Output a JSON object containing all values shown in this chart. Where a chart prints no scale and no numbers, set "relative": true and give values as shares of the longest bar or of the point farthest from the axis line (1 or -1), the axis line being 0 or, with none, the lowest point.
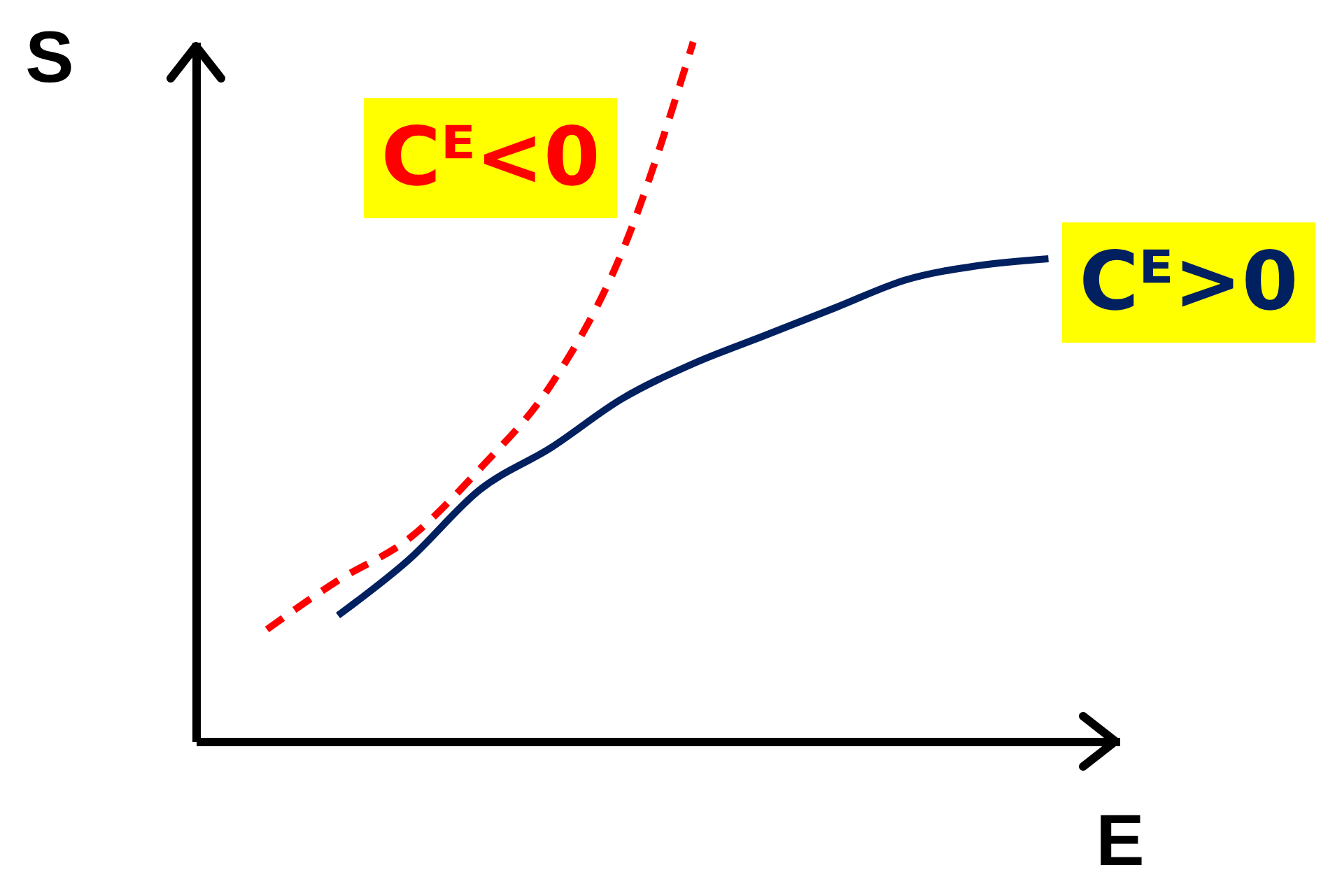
{
  "chart_data": {
    "type": "line",
    "relative": true,
    "xlabel": "E",
    "ylabel": "S",
    "marker": "none",
    "categories": [
      null,
      null,
      null,
      null,
      null,
      null,
      null,
      null,
      null,
      null,
      null,
      null
    ],
    "series": [
      {
        "name": "Cᴱ<0",
        "color": "#ff0000",
        "line_style": "dashed",
        "values": [
          0.16,
          0.23,
          0.29,
          0.39,
          0.51,
          0.7,
          1.0,
          null,
          null,
          null,
          null,
          null
        ]
      },
      {
        "name": "Cᴱ>0",
        "color": "#002060",
        "line_style": "solid",
        "values": [
          null,
          0.18,
          0.26,
          0.36,
          0.42,
          0.49,
          0.54,
          0.58,
          0.62,
          0.66,
          0.68,
          0.69
        ]
      }
    ]
  }
}
